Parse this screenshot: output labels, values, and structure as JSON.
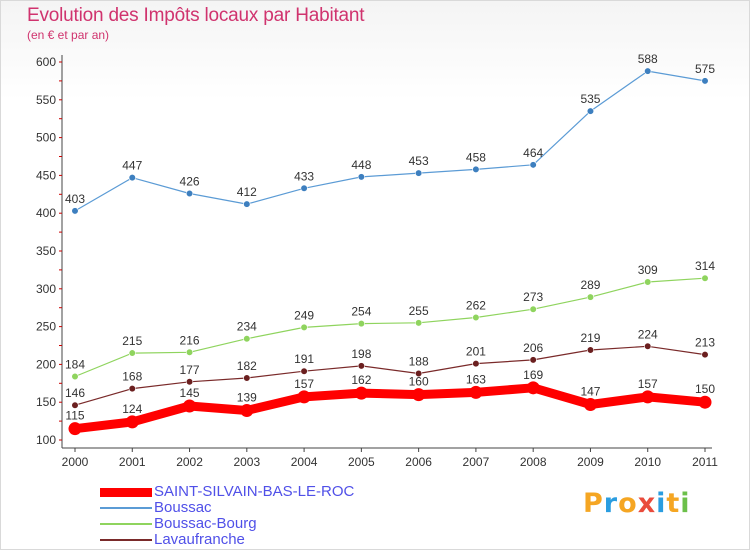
{
  "chart_data": {
    "type": "line",
    "title": "Evolution des Impôts locaux par Habitant",
    "subtitle": "(en € et par an)",
    "xlabel": "",
    "ylabel": "",
    "x": [
      "2000",
      "2001",
      "2002",
      "2003",
      "2004",
      "2005",
      "2006",
      "2007",
      "2008",
      "2009",
      "2010",
      "2011"
    ],
    "ylim": [
      100,
      600
    ],
    "yticks": [
      100,
      150,
      200,
      250,
      300,
      350,
      400,
      450,
      500,
      550,
      600
    ],
    "grid": false,
    "legend_position": "bottom-left",
    "series": [
      {
        "name": "SAINT-SILVAIN-BAS-LE-ROC",
        "color": "#ff0000",
        "values": [
          115,
          124,
          145,
          139,
          157,
          162,
          160,
          163,
          169,
          147,
          157,
          150
        ]
      },
      {
        "name": "Boussac",
        "color": "#5b9bd5",
        "values": [
          403,
          447,
          426,
          412,
          433,
          448,
          453,
          458,
          464,
          535,
          588,
          575
        ]
      },
      {
        "name": "Boussac-Bourg",
        "color": "#8fd45e",
        "values": [
          184,
          215,
          216,
          234,
          249,
          254,
          255,
          262,
          273,
          289,
          309,
          314
        ]
      },
      {
        "name": "Lavaufranche",
        "color": "#7a2a2a",
        "values": [
          146,
          168,
          177,
          182,
          191,
          198,
          188,
          201,
          206,
          219,
          224,
          213
        ]
      }
    ]
  },
  "legend": {
    "items": [
      "SAINT-SILVAIN-BAS-LE-ROC",
      "Boussac",
      "Boussac-Bourg",
      "Lavaufranche"
    ]
  },
  "logo": {
    "letters": [
      "P",
      "r",
      "o",
      "x",
      "i",
      "t",
      "i"
    ],
    "colors": [
      "#f5a623",
      "#2a9de0",
      "#f5a623",
      "#e94b3c",
      "#2a9de0",
      "#f5a623",
      "#6cc04a"
    ]
  }
}
